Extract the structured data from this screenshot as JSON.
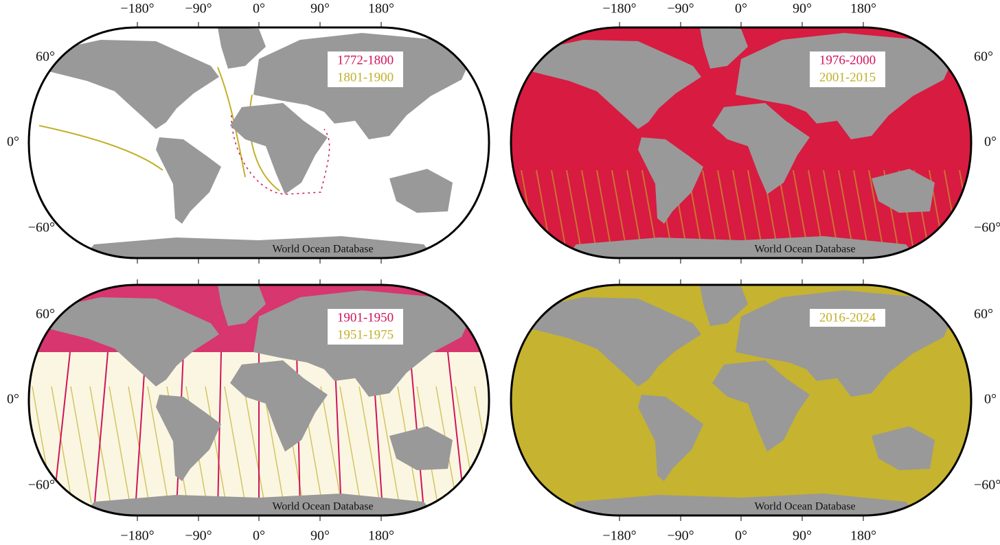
{
  "panels": [
    {
      "legend": [
        {
          "label": "1772-1800",
          "color": "#d0145a"
        },
        {
          "label": "1801-1900",
          "color": "#c2b02a"
        }
      ],
      "credit": "World Ocean Database",
      "lon_labels": [
        "−180°",
        "−90°",
        "0°",
        "90°",
        "180°"
      ],
      "lat_labels": [
        "60°",
        "0°",
        "−60°"
      ]
    },
    {
      "legend": [
        {
          "label": "1976-2000",
          "color": "#d0145a"
        },
        {
          "label": "2001-2015",
          "color": "#c2b02a"
        }
      ],
      "credit": "World Ocean Database",
      "lon_labels": [
        "−180°",
        "−90°",
        "0°",
        "90°",
        "180°"
      ],
      "lat_labels": [
        "60°",
        "0°",
        "−60°"
      ]
    },
    {
      "legend": [
        {
          "label": "1901-1950",
          "color": "#d0145a"
        },
        {
          "label": "1951-1975",
          "color": "#c2b02a"
        }
      ],
      "credit": "World Ocean Database",
      "lon_labels": [
        "−180°",
        "−90°",
        "0°",
        "90°",
        "180°"
      ],
      "lat_labels": [
        "60°",
        "0°",
        "−60°"
      ]
    },
    {
      "legend": [
        {
          "label": "2016-2024",
          "color": "#c2b02a"
        }
      ],
      "credit": "World Ocean Database",
      "lon_labels": [
        "−180°",
        "−90°",
        "0°",
        "90°",
        "180°"
      ],
      "lat_labels": [
        "60°",
        "0°",
        "−60°"
      ]
    }
  ]
}
